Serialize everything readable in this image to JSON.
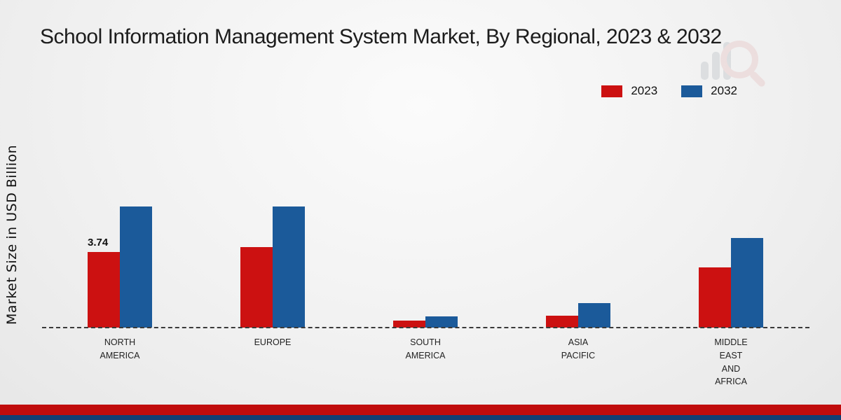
{
  "title": "School Information Management System Market, By Regional, 2023 & 2032",
  "y_axis_label": "Market Size in USD Billion",
  "legend": [
    {
      "label": "2023",
      "color": "#cc1111"
    },
    {
      "label": "2032",
      "color": "#1b5a9a"
    }
  ],
  "colors": {
    "series_2023": "#cc1111",
    "series_2032": "#1b5a9a",
    "bottom_strip_red": "#c00c0c",
    "bottom_strip_blue": "#123f73"
  },
  "chart_data": {
    "type": "bar",
    "categories": [
      "NORTH AMERICA",
      "EUROPE",
      "SOUTH AMERICA",
      "ASIA PACIFIC",
      "MIDDLE EAST AND AFRICA"
    ],
    "series": [
      {
        "name": "2023",
        "color": "#cc1111",
        "values": [
          3.74,
          4.0,
          0.35,
          0.6,
          3.0
        ]
      },
      {
        "name": "2032",
        "color": "#1b5a9a",
        "values": [
          6.0,
          6.0,
          0.55,
          1.2,
          4.45
        ]
      }
    ],
    "data_labels": [
      {
        "category_index": 0,
        "series": "2023",
        "text": "3.74"
      }
    ],
    "title": "School Information Management System Market, By Regional, 2023 & 2032",
    "xlabel": "",
    "ylabel": "Market Size in USD Billion",
    "ylim": [
      0,
      6.5
    ],
    "grid": false,
    "baseline_style": "dashed",
    "legend_position": "top-right"
  }
}
